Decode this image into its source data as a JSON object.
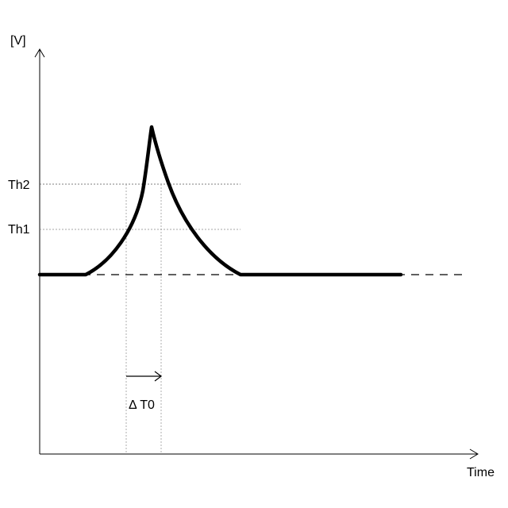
{
  "axes": {
    "y_unit_label": "[V]",
    "x_label": "Time"
  },
  "thresholds": {
    "th1_label": "Th1",
    "th2_label": "Th2"
  },
  "interval": {
    "label": "Δ T0"
  },
  "colors": {
    "curve": "#000000",
    "axis": "#000000",
    "guide": "#888888"
  }
}
